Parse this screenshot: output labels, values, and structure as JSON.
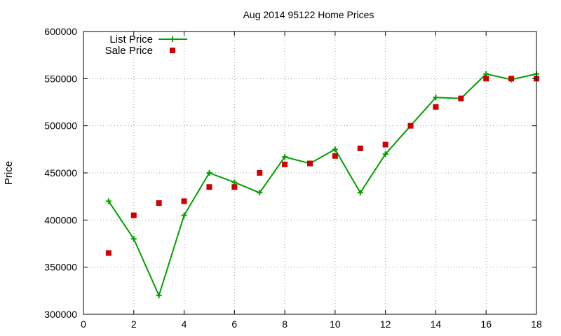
{
  "chart_data": {
    "type": "line",
    "title": "Aug 2014 95122 Home Prices",
    "xlabel": "",
    "ylabel": "Price",
    "xlim": [
      0,
      18
    ],
    "ylim": [
      300000,
      600000
    ],
    "x_ticks": [
      0,
      2,
      4,
      6,
      8,
      10,
      12,
      14,
      16,
      18
    ],
    "y_ticks": [
      300000,
      350000,
      400000,
      450000,
      500000,
      550000,
      600000
    ],
    "grid": true,
    "legend_position": "top-left",
    "series": [
      {
        "name": "List Price",
        "style": "line+markers",
        "marker": "plus",
        "color": "#00a000",
        "x": [
          1,
          2,
          3,
          4,
          5,
          6,
          7,
          8,
          9,
          10,
          11,
          12,
          13,
          14,
          15,
          16,
          17,
          18
        ],
        "y": [
          420000,
          380000,
          320000,
          405000,
          450000,
          440000,
          429000,
          467000,
          460000,
          475000,
          429000,
          470000,
          500000,
          530000,
          529000,
          555000,
          549000,
          555000
        ]
      },
      {
        "name": "Sale Price",
        "style": "points",
        "marker": "square",
        "color": "#cc0000",
        "x": [
          1,
          2,
          3,
          4,
          5,
          6,
          7,
          8,
          9,
          10,
          11,
          12,
          13,
          14,
          15,
          16,
          17,
          18
        ],
        "y": [
          365000,
          405000,
          418000,
          420000,
          435000,
          435000,
          450000,
          459000,
          460000,
          468000,
          476000,
          480000,
          500000,
          520000,
          529000,
          550000,
          550000,
          550000
        ]
      }
    ]
  }
}
